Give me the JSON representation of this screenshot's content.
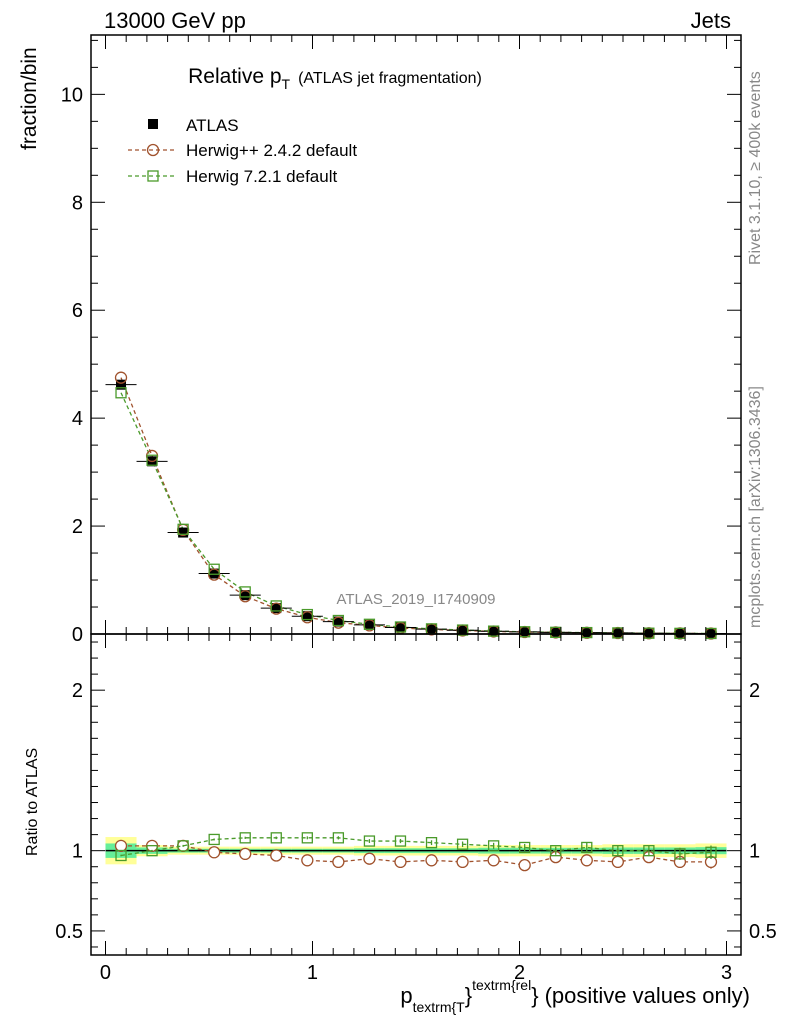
{
  "header": {
    "left": "13000 GeV pp",
    "right": "Jets"
  },
  "side": {
    "rivet": "Rivet 3.1.10, ≥ 400k events",
    "mcplots": "mcplots.cern.ch [arXiv:1306.3436]"
  },
  "colors": {
    "atlas": "#000000",
    "herwigpp": "#a0522d",
    "herwig7": "#4a9a2a",
    "band_yellow": "#ffff99",
    "band_green": "#66ee99"
  },
  "chart_data": [
    {
      "type": "scatter",
      "title": "Relative p",
      "title_sub": "T",
      "title_suffix": "(ATLAS jet fragmentation)",
      "ylabel": "fraction/bin",
      "watermark": "ATLAS_2019_I1740909",
      "xlim": [
        -0.07,
        3.07
      ],
      "ylim": [
        0,
        11.1
      ],
      "yticks": [
        0,
        2,
        4,
        6,
        8,
        10
      ],
      "ytick_labels": [
        "0",
        "2",
        "4",
        "6",
        "8",
        "10"
      ],
      "legend": [
        "ATLAS",
        "Herwig++ 2.4.2 default",
        "Herwig 7.2.1 default"
      ],
      "x": [
        0.075,
        0.225,
        0.375,
        0.525,
        0.675,
        0.825,
        0.975,
        1.125,
        1.275,
        1.425,
        1.575,
        1.725,
        1.875,
        2.025,
        2.175,
        2.325,
        2.475,
        2.625,
        2.775,
        2.925
      ],
      "series": [
        {
          "name": "ATLAS",
          "values": [
            4.62,
            3.2,
            1.88,
            1.12,
            0.72,
            0.48,
            0.33,
            0.23,
            0.17,
            0.12,
            0.09,
            0.07,
            0.05,
            0.04,
            0.03,
            0.025,
            0.02,
            0.015,
            0.012,
            0.01
          ]
        },
        {
          "name": "Herwig++ 2.4.2 default",
          "values": [
            4.75,
            3.3,
            1.93,
            1.1,
            0.7,
            0.47,
            0.31,
            0.21,
            0.16,
            0.11,
            0.085,
            0.065,
            0.047,
            0.037,
            0.029,
            0.023,
            0.018,
            0.014,
            0.011,
            0.009
          ]
        },
        {
          "name": "Herwig 7.2.1 default",
          "values": [
            4.47,
            3.22,
            1.94,
            1.2,
            0.78,
            0.52,
            0.36,
            0.25,
            0.18,
            0.13,
            0.095,
            0.073,
            0.053,
            0.041,
            0.031,
            0.026,
            0.02,
            0.015,
            0.012,
            0.01
          ]
        }
      ]
    },
    {
      "type": "scatter",
      "ylabel": "Ratio to ATLAS",
      "xlabel": "p",
      "xlabel_sub": "textrm{T",
      "xlabel_brace": "}",
      "xlabel_sup": "textrm{rel",
      "xlabel_end": "}",
      "xlabel_suffix": "(positive values only)",
      "xlim": [
        -0.07,
        3.07
      ],
      "ylim": [
        0.35,
        2.35
      ],
      "yticks": [
        0.5,
        1,
        2
      ],
      "ytick_labels": [
        "0.5",
        "1",
        "2"
      ],
      "xticks": [
        0,
        1,
        2,
        3
      ],
      "xtick_labels": [
        "0",
        "1",
        "2",
        "3"
      ],
      "x": [
        0.075,
        0.225,
        0.375,
        0.525,
        0.675,
        0.825,
        0.975,
        1.125,
        1.275,
        1.425,
        1.575,
        1.725,
        1.875,
        2.025,
        2.175,
        2.325,
        2.475,
        2.625,
        2.775,
        2.925
      ],
      "band_yellow": [
        0.085,
        0.035,
        0.025,
        0.025,
        0.025,
        0.025,
        0.025,
        0.025,
        0.03,
        0.03,
        0.03,
        0.03,
        0.035,
        0.035,
        0.035,
        0.035,
        0.04,
        0.04,
        0.04,
        0.045
      ],
      "band_green": [
        0.045,
        0.02,
        0.012,
        0.012,
        0.012,
        0.012,
        0.012,
        0.012,
        0.015,
        0.015,
        0.015,
        0.015,
        0.018,
        0.018,
        0.018,
        0.018,
        0.02,
        0.02,
        0.02,
        0.022
      ],
      "series": [
        {
          "name": "Herwig++ 2.4.2 default",
          "values": [
            1.03,
            1.03,
            1.03,
            0.99,
            0.98,
            0.97,
            0.94,
            0.93,
            0.95,
            0.93,
            0.94,
            0.93,
            0.94,
            0.91,
            0.96,
            0.94,
            0.93,
            0.96,
            0.93,
            0.93
          ],
          "errors": [
            0.005,
            0.005,
            0.006,
            0.006,
            0.007,
            0.008,
            0.009,
            0.01,
            0.012,
            0.013,
            0.015,
            0.017,
            0.019,
            0.022,
            0.025,
            0.028,
            0.031,
            0.034,
            0.038,
            0.042
          ]
        },
        {
          "name": "Herwig 7.2.1 default",
          "values": [
            0.97,
            1.0,
            1.03,
            1.07,
            1.08,
            1.08,
            1.08,
            1.08,
            1.06,
            1.06,
            1.05,
            1.04,
            1.03,
            1.02,
            1.0,
            1.02,
            1.0,
            1.0,
            0.98,
            0.99
          ],
          "errors": [
            0.005,
            0.005,
            0.006,
            0.006,
            0.007,
            0.008,
            0.009,
            0.01,
            0.012,
            0.013,
            0.015,
            0.017,
            0.019,
            0.022,
            0.025,
            0.028,
            0.031,
            0.034,
            0.038,
            0.042
          ]
        }
      ]
    }
  ]
}
